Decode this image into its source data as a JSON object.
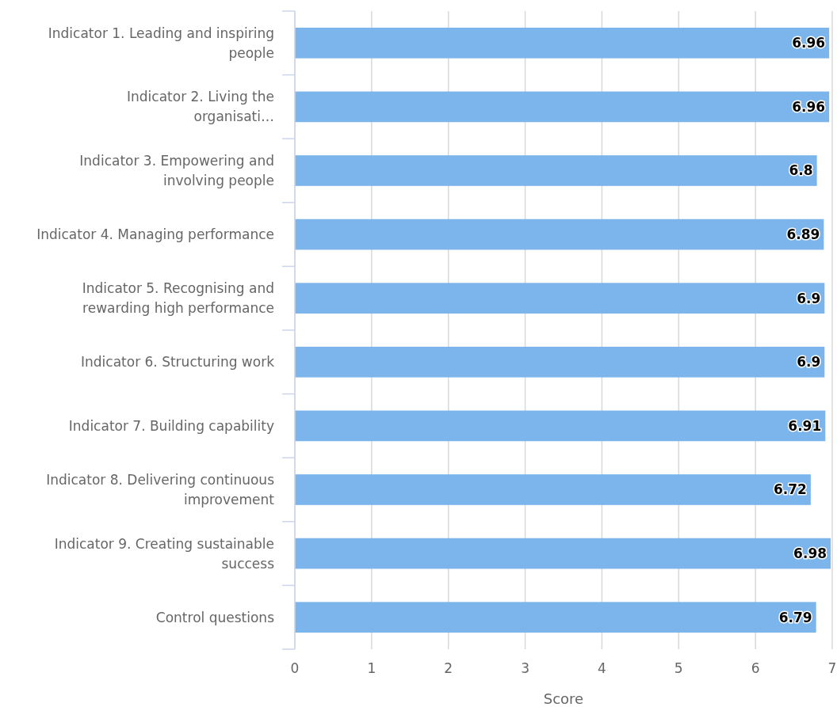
{
  "chart_data": {
    "type": "bar",
    "orientation": "horizontal",
    "xlabel": "Score",
    "categories": [
      "Indicator 1. Leading and inspiring people",
      "Indicator 2. Living the organisati…",
      "Indicator 3. Empowering and involving people",
      "Indicator 4. Managing performance",
      "Indicator 5. Recognising and rewarding high performance",
      "Indicator 6. Structuring work",
      "Indicator 7. Building capability",
      "Indicator 8. Delivering continuous improvement",
      "Indicator 9. Creating sustainable success",
      "Control questions"
    ],
    "values": [
      6.96,
      6.96,
      6.8,
      6.89,
      6.9,
      6.9,
      6.91,
      6.72,
      6.98,
      6.79
    ],
    "color": "#7cb5ec",
    "xlim": [
      0,
      7
    ],
    "xticks": [
      0,
      1,
      2,
      3,
      4,
      5,
      6,
      7
    ],
    "grid": "x",
    "data_labels": true
  }
}
